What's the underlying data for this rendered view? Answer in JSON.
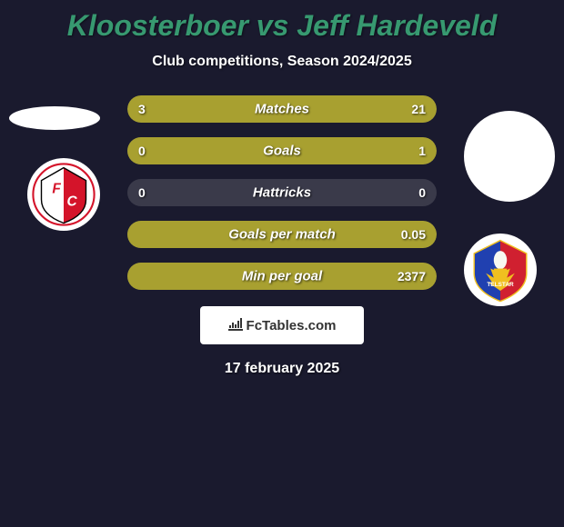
{
  "title": "Kloosterboer vs Jeff Hardeveld",
  "subtitle": "Club competitions, Season 2024/2025",
  "date": "17 february 2025",
  "watermark": "FcTables.com",
  "colors": {
    "background": "#1a1a2e",
    "title": "#379970",
    "bar_fill": "#a8a030",
    "bar_track": "#3a3a4a",
    "text": "#ffffff"
  },
  "player_left": {
    "name": "Kloosterboer",
    "club": "FC Utrecht",
    "club_colors": {
      "red": "#d4142a",
      "white": "#ffffff",
      "black": "#000000"
    }
  },
  "player_right": {
    "name": "Jeff Hardeveld",
    "club": "Telstar",
    "club_colors": {
      "blue": "#2040b0",
      "red": "#d02030",
      "yellow": "#f0c020"
    }
  },
  "stats": [
    {
      "label": "Matches",
      "left_val": "3",
      "right_val": "21",
      "left_pct": 12.5,
      "right_pct": 87.5
    },
    {
      "label": "Goals",
      "left_val": "0",
      "right_val": "1",
      "left_pct": 0,
      "right_pct": 100
    },
    {
      "label": "Hattricks",
      "left_val": "0",
      "right_val": "0",
      "left_pct": 0,
      "right_pct": 0
    },
    {
      "label": "Goals per match",
      "left_val": "",
      "right_val": "0.05",
      "left_pct": 0,
      "right_pct": 100
    },
    {
      "label": "Min per goal",
      "left_val": "",
      "right_val": "2377",
      "left_pct": 0,
      "right_pct": 100
    }
  ]
}
